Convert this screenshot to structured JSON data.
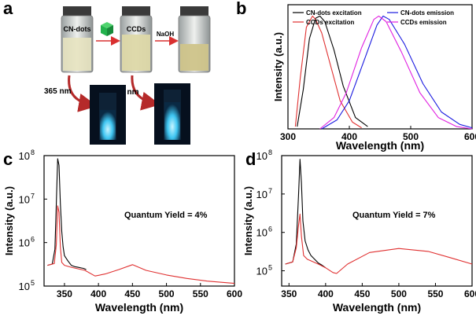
{
  "panels": {
    "a": {
      "letter": "a",
      "vials": [
        "CN-dots",
        "CCDs",
        ""
      ],
      "arrow_labels": [
        "",
        "NaOH"
      ],
      "uv_labels": [
        "365 nm",
        "365 nm"
      ],
      "colors": {
        "liquid_a": "#e7e3c0",
        "liquid_b": "#ddd8a8",
        "liquid_c": "#cfc48a",
        "cuvette_glow": "#3fc6f2",
        "cube": "#22b24c",
        "arrow": "#d93030"
      }
    },
    "b": {
      "letter": "b",
      "legend": [
        "CN-dots excitation",
        "CCDs excitation",
        "CN-dots emission",
        "CCDs emission"
      ]
    },
    "c": {
      "letter": "c",
      "annotation": "Quantum Yield = 4%"
    },
    "d": {
      "letter": "d",
      "annotation": "Quantum Yield = 7%"
    }
  },
  "chart_data": [
    {
      "id": "b",
      "type": "line",
      "xlabel": "Wavelength (nm)",
      "ylabel": "Intensity (a.u.)",
      "xlim": [
        300,
        600
      ],
      "ylim": [
        0,
        1.1
      ],
      "xticks": [
        300,
        400,
        500,
        600
      ],
      "grid": false,
      "legend": "top",
      "series": [
        {
          "name": "CN-dots excitation",
          "color": "#000000",
          "x": [
            315,
            325,
            335,
            345,
            352,
            360,
            375,
            390,
            410,
            430
          ],
          "y": [
            0.02,
            0.35,
            0.8,
            0.98,
            1.0,
            0.95,
            0.7,
            0.38,
            0.1,
            0.02
          ]
        },
        {
          "name": "CCDs excitation",
          "color": "#e03030",
          "x": [
            312,
            320,
            330,
            340,
            345,
            355,
            370,
            385,
            405,
            420
          ],
          "y": [
            0.02,
            0.45,
            0.9,
            1.0,
            0.97,
            0.85,
            0.55,
            0.25,
            0.06,
            0.01
          ]
        },
        {
          "name": "CN-dots emission",
          "color": "#1a1ae0",
          "x": [
            355,
            380,
            400,
            425,
            445,
            455,
            465,
            490,
            520,
            550,
            580,
            600
          ],
          "y": [
            0.0,
            0.08,
            0.25,
            0.62,
            0.92,
            1.0,
            0.97,
            0.75,
            0.4,
            0.15,
            0.04,
            0.01
          ]
        },
        {
          "name": "CCDs emission",
          "color": "#e020e0",
          "x": [
            352,
            375,
            395,
            420,
            440,
            448,
            460,
            485,
            515,
            545,
            575,
            600
          ],
          "y": [
            0.0,
            0.1,
            0.32,
            0.72,
            0.97,
            1.0,
            0.95,
            0.68,
            0.32,
            0.1,
            0.02,
            0.0
          ]
        }
      ]
    },
    {
      "id": "c",
      "type": "line",
      "xlabel": "Wavelength (nm)",
      "ylabel": "Intensity (a.u.)",
      "xlim": [
        320,
        600
      ],
      "ylim": [
        100000,
        100000000
      ],
      "yscale": "log",
      "xticks": [
        350,
        400,
        450,
        500,
        550,
        600
      ],
      "yticks": [
        100000,
        1000000,
        10000000,
        100000000
      ],
      "yticklabels": [
        "10",
        "10",
        "10",
        "10"
      ],
      "ytickexp": [
        "5",
        "6",
        "7",
        "8"
      ],
      "grid": false,
      "series": [
        {
          "color": "#000000",
          "x": [
            325,
            332,
            336,
            338,
            340,
            342,
            344,
            346,
            348,
            350,
            355,
            360,
            365,
            370,
            375,
            378,
            382
          ],
          "y": [
            300000,
            320000,
            700000,
            8000000,
            85000000,
            60000000,
            8000000,
            1800000,
            800000,
            500000,
            380000,
            300000,
            280000,
            270000,
            260000,
            255000,
            240000
          ]
        },
        {
          "color": "#e03030",
          "x": [
            325,
            335,
            338,
            340,
            342,
            344,
            346,
            350,
            360,
            380,
            395,
            410,
            430,
            450,
            470,
            500,
            530,
            560,
            600
          ],
          "y": [
            300000,
            330000,
            900000,
            7000000,
            5000000,
            800000,
            350000,
            300000,
            270000,
            230000,
            170000,
            190000,
            240000,
            310000,
            230000,
            180000,
            150000,
            130000,
            115000
          ]
        }
      ]
    },
    {
      "id": "d",
      "type": "line",
      "xlabel": "Wavelength (nm)",
      "ylabel": "Intensity (a.u.)",
      "xlim": [
        340,
        600
      ],
      "ylim": [
        40000,
        100000000
      ],
      "yscale": "log",
      "xticks": [
        350,
        400,
        450,
        500,
        550,
        600
      ],
      "yticks": [
        100000,
        1000000,
        10000000,
        100000000
      ],
      "yticklabels": [
        "10",
        "10",
        "10",
        "10"
      ],
      "ytickexp": [
        "5",
        "6",
        "7",
        "8"
      ],
      "grid": false,
      "series": [
        {
          "color": "#000000",
          "x": [
            345,
            355,
            360,
            363,
            365,
            367,
            369,
            372,
            376,
            380,
            385,
            390,
            395,
            400
          ],
          "y": [
            150000,
            170000,
            500000,
            9000000,
            80000000,
            20000000,
            2000000,
            600000,
            350000,
            250000,
            200000,
            160000,
            140000,
            120000
          ]
        },
        {
          "color": "#e03030",
          "x": [
            345,
            355,
            360,
            363,
            365,
            367,
            370,
            375,
            390,
            400,
            410,
            415,
            430,
            460,
            500,
            540,
            570,
            600
          ],
          "y": [
            150000,
            170000,
            400000,
            1500000,
            3000000,
            800000,
            250000,
            200000,
            150000,
            120000,
            90000,
            85000,
            150000,
            300000,
            380000,
            320000,
            220000,
            150000
          ]
        }
      ]
    }
  ]
}
